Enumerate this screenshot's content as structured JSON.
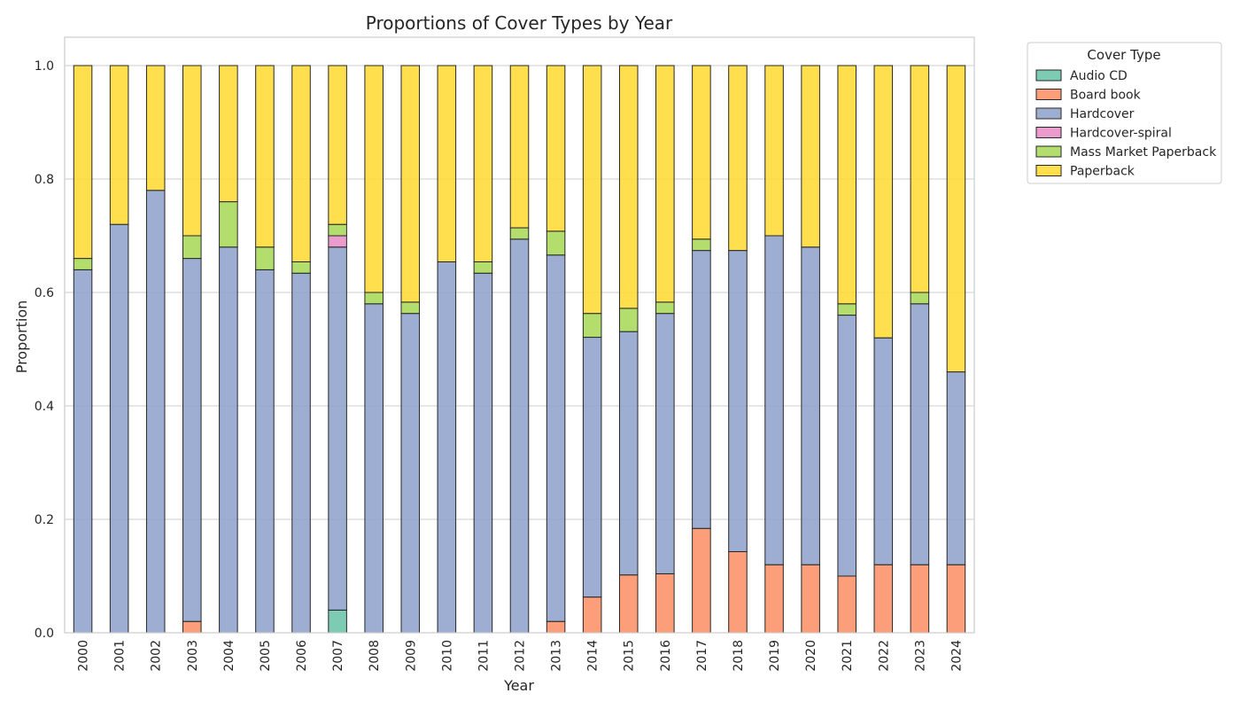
{
  "chart_data": {
    "type": "bar",
    "stacked": true,
    "title": "Proportions of Cover Types by Year",
    "xlabel": "Year",
    "ylabel": "Proportion",
    "ylim": [
      0,
      1.05
    ],
    "yticks": [
      "0.0",
      "0.2",
      "0.4",
      "0.6",
      "0.8",
      "1.0"
    ],
    "grid": true,
    "legend_title": "Cover Type",
    "legend_placement": "outside top-right",
    "categories": [
      "2000",
      "2001",
      "2002",
      "2003",
      "2004",
      "2005",
      "2006",
      "2007",
      "2008",
      "2009",
      "2010",
      "2011",
      "2012",
      "2013",
      "2014",
      "2015",
      "2016",
      "2017",
      "2018",
      "2019",
      "2020",
      "2021",
      "2022",
      "2023",
      "2024"
    ],
    "series": [
      {
        "name": "Audio CD",
        "color": "#66c2a5",
        "values": [
          0,
          0,
          0,
          0,
          0,
          0,
          0,
          0.04,
          0,
          0,
          0,
          0,
          0,
          0,
          0,
          0,
          0,
          0,
          0,
          0,
          0,
          0,
          0,
          0,
          0
        ]
      },
      {
        "name": "Board book",
        "color": "#fc8d62",
        "values": [
          0,
          0,
          0,
          0.02,
          0,
          0,
          0,
          0,
          0,
          0,
          0,
          0,
          0,
          0.02,
          0.063,
          0.102,
          0.104,
          0.184,
          0.143,
          0.12,
          0.12,
          0.1,
          0.12,
          0.12,
          0.12
        ]
      },
      {
        "name": "Hardcover",
        "color": "#8da0cb",
        "values": [
          0.64,
          0.72,
          0.78,
          0.64,
          0.68,
          0.64,
          0.634,
          0.64,
          0.58,
          0.563,
          0.654,
          0.634,
          0.694,
          0.646,
          0.458,
          0.429,
          0.459,
          0.49,
          0.531,
          0.58,
          0.56,
          0.46,
          0.4,
          0.46,
          0.34
        ]
      },
      {
        "name": "Hardcover-spiral",
        "color": "#e78ac3",
        "values": [
          0,
          0,
          0,
          0,
          0,
          0,
          0,
          0.02,
          0,
          0,
          0,
          0,
          0,
          0,
          0,
          0,
          0,
          0,
          0,
          0,
          0,
          0,
          0,
          0,
          0
        ]
      },
      {
        "name": "Mass Market Paperback",
        "color": "#a6d854",
        "values": [
          0.02,
          0,
          0,
          0.04,
          0.08,
          0.04,
          0.02,
          0.02,
          0.02,
          0.02,
          0,
          0.02,
          0.02,
          0.042,
          0.042,
          0.041,
          0.02,
          0.02,
          0,
          0,
          0,
          0.02,
          0,
          0.02,
          0
        ]
      },
      {
        "name": "Paperback",
        "color": "#ffd92f",
        "values": [
          0.34,
          0.28,
          0.22,
          0.3,
          0.24,
          0.32,
          0.346,
          0.28,
          0.4,
          0.417,
          0.346,
          0.346,
          0.286,
          0.292,
          0.437,
          0.428,
          0.417,
          0.306,
          0.326,
          0.3,
          0.32,
          0.42,
          0.48,
          0.4,
          0.54
        ]
      }
    ]
  }
}
